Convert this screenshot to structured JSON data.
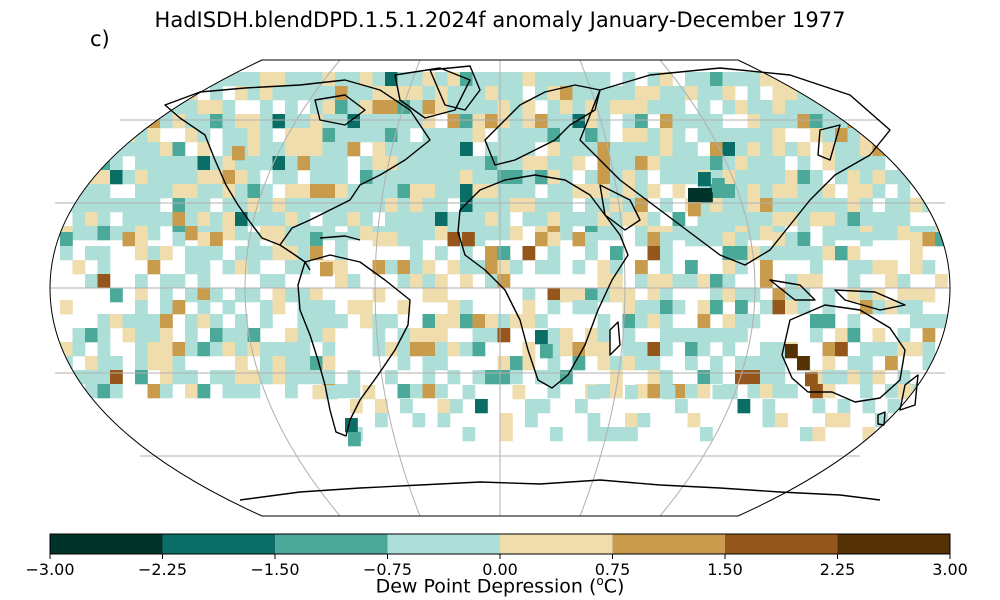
{
  "title": "HadISDH.blendDPD.1.5.1.2024f anomaly January-December 1977",
  "panel_label": "c)",
  "colorbar": {
    "label_prefix": "Dew Point Depression (",
    "label_sup": "o",
    "label_suffix": "C)",
    "ticks": [
      "−3.00",
      "−2.25",
      "−1.50",
      "−0.75",
      "0.00",
      "0.75",
      "1.50",
      "2.25",
      "3.00"
    ],
    "bins": [
      -3.0,
      -2.25,
      -1.5,
      -0.75,
      0.0,
      0.75,
      1.5,
      2.25,
      3.0
    ],
    "colors": [
      "#01332b",
      "#0a6e66",
      "#4ba99a",
      "#addfd8",
      "#efddae",
      "#c89b4d",
      "#94561a",
      "#543005"
    ]
  },
  "map": {
    "projection": "Robinson",
    "graticule": "grey",
    "land_outline": "black"
  }
}
